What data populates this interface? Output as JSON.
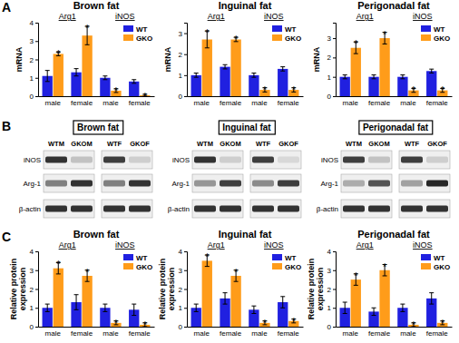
{
  "chart_data": [
    {
      "type": "bar",
      "title": "Brown fat",
      "ylabel": "mRNA",
      "categories": [
        "male",
        "female",
        "male",
        "female"
      ],
      "group_labels": [
        "Arg1",
        "iNOS"
      ],
      "series": [
        {
          "name": "WT",
          "color": "#2020e0",
          "values": [
            1.1,
            1.3,
            1.0,
            0.8
          ],
          "errors": [
            0.3,
            0.2,
            0.1,
            0.1
          ]
        },
        {
          "name": "GKO",
          "color": "#ff9c1a",
          "values": [
            2.3,
            3.3,
            0.3,
            0.05
          ],
          "errors": [
            0.1,
            0.5,
            0.1,
            0.05
          ],
          "annotations": [
            "*",
            "*",
            "*",
            "*"
          ]
        }
      ],
      "ylim": [
        0,
        4
      ],
      "yticks": [
        0,
        1,
        2,
        3,
        4
      ],
      "legend": "upper right"
    },
    {
      "type": "bar",
      "title": "Inguinal fat",
      "ylabel": "mRNA",
      "categories": [
        "male",
        "female",
        "male",
        "female"
      ],
      "group_labels": [
        "Arg1",
        "iNOS"
      ],
      "series": [
        {
          "name": "WT",
          "color": "#2020e0",
          "values": [
            1.0,
            1.4,
            1.0,
            1.3
          ],
          "errors": [
            0.1,
            0.1,
            0.1,
            0.1
          ]
        },
        {
          "name": "GKO",
          "color": "#ff9c1a",
          "values": [
            2.7,
            2.7,
            0.3,
            0.3
          ],
          "errors": [
            0.4,
            0.1,
            0.1,
            0.1
          ],
          "annotations": [
            "*",
            "*",
            "*",
            "*"
          ]
        }
      ],
      "ylim": [
        0,
        3.5
      ],
      "yticks": [
        0,
        1,
        2,
        3
      ],
      "legend": "upper right"
    },
    {
      "type": "bar",
      "title": "Perigonadal fat",
      "ylabel": "mRNA",
      "categories": [
        "male",
        "female",
        "male",
        "female"
      ],
      "group_labels": [
        "Arg1",
        "iNOS"
      ],
      "series": [
        {
          "name": "WT",
          "color": "#2020e0",
          "values": [
            1.0,
            1.0,
            1.0,
            1.3
          ],
          "errors": [
            0.1,
            0.1,
            0.1,
            0.1
          ]
        },
        {
          "name": "GKO",
          "color": "#ff9c1a",
          "values": [
            2.5,
            3.0,
            0.3,
            0.3
          ],
          "errors": [
            0.3,
            0.3,
            0.1,
            0.1
          ],
          "annotations": [
            "*",
            "*",
            "*",
            "*"
          ]
        }
      ],
      "ylim": [
        0,
        3.8
      ],
      "yticks": [
        0,
        1,
        2,
        3
      ],
      "legend": "upper right"
    },
    {
      "type": "bar",
      "title": "Brown fat",
      "ylabel": "Relative protein expression",
      "categories": [
        "male",
        "female",
        "male",
        "female"
      ],
      "group_labels": [
        "Arg1",
        "iNOS"
      ],
      "series": [
        {
          "name": "WT",
          "color": "#2020e0",
          "values": [
            1.0,
            1.3,
            1.0,
            0.9
          ],
          "errors": [
            0.2,
            0.4,
            0.2,
            0.3
          ]
        },
        {
          "name": "GKO",
          "color": "#ff9c1a",
          "values": [
            3.1,
            2.7,
            0.2,
            0.1
          ],
          "errors": [
            0.3,
            0.3,
            0.1,
            0.1
          ],
          "annotations": [
            "*",
            "*",
            "*",
            "*"
          ]
        }
      ],
      "ylim": [
        0,
        4
      ],
      "yticks": [
        0,
        1,
        2,
        3,
        4
      ],
      "legend": "upper right"
    },
    {
      "type": "bar",
      "title": "Inguinal fat",
      "ylabel": "Relative protein expression",
      "categories": [
        "male",
        "female",
        "male",
        "female"
      ],
      "group_labels": [
        "Arg1",
        "iNOS"
      ],
      "series": [
        {
          "name": "WT",
          "color": "#2020e0",
          "values": [
            1.0,
            1.5,
            0.9,
            1.3
          ],
          "errors": [
            0.2,
            0.3,
            0.2,
            0.3
          ]
        },
        {
          "name": "GKO",
          "color": "#ff9c1a",
          "values": [
            3.5,
            2.7,
            0.2,
            0.3
          ],
          "errors": [
            0.3,
            0.3,
            0.1,
            0.1
          ],
          "annotations": [
            "*",
            "*",
            "*",
            "*"
          ]
        }
      ],
      "ylim": [
        0,
        4
      ],
      "yticks": [
        0,
        1,
        2,
        3,
        4
      ],
      "legend": "upper right"
    },
    {
      "type": "bar",
      "title": "Perigonadal fat",
      "ylabel": "Relative protein expression",
      "categories": [
        "male",
        "female",
        "male",
        "female"
      ],
      "group_labels": [
        "Arg1",
        "iNOS"
      ],
      "series": [
        {
          "name": "WT",
          "color": "#2020e0",
          "values": [
            1.0,
            0.8,
            1.0,
            1.5
          ],
          "errors": [
            0.3,
            0.2,
            0.2,
            0.3
          ]
        },
        {
          "name": "GKO",
          "color": "#ff9c1a",
          "values": [
            2.5,
            3.0,
            0.1,
            0.2
          ],
          "errors": [
            0.3,
            0.3,
            0.1,
            0.1
          ],
          "annotations": [
            "*",
            "*",
            "*",
            "*"
          ]
        }
      ],
      "ylim": [
        0,
        4
      ],
      "yticks": [
        0,
        1,
        2,
        3,
        4
      ],
      "legend": "upper right"
    }
  ],
  "figure": {
    "panel_labels": [
      "A",
      "B",
      "C"
    ],
    "blots": [
      {
        "title": "Brown fat",
        "lanes": [
          "WTM",
          "GKOM",
          "WTF",
          "GKOF"
        ],
        "rows": [
          {
            "label": "iNOS",
            "intensity": [
              0.85,
              0.2,
              0.8,
              0.15
            ]
          },
          {
            "label": "Arg-1",
            "intensity": [
              0.5,
              0.85,
              0.5,
              0.85
            ]
          },
          {
            "label": "β-actin",
            "intensity": [
              0.85,
              0.85,
              0.85,
              0.85
            ]
          }
        ]
      },
      {
        "title": "Inguinal fat",
        "lanes": [
          "WTM",
          "GKOM",
          "WTF",
          "GKOF"
        ],
        "rows": [
          {
            "label": "iNOS",
            "intensity": [
              0.85,
              0.15,
              0.8,
              0.1
            ]
          },
          {
            "label": "Arg-1",
            "intensity": [
              0.4,
              0.8,
              0.45,
              0.8
            ]
          },
          {
            "label": "β-actin",
            "intensity": [
              0.85,
              0.85,
              0.85,
              0.85
            ]
          }
        ]
      },
      {
        "title": "Perigonadal fat",
        "lanes": [
          "WTM",
          "GKOM",
          "WTF",
          "GKOF"
        ],
        "rows": [
          {
            "label": "iNOS",
            "intensity": [
              0.8,
              0.2,
              0.8,
              0.15
            ]
          },
          {
            "label": "Arg-1",
            "intensity": [
              0.3,
              0.7,
              0.35,
              0.9
            ]
          },
          {
            "label": "β-actin",
            "intensity": [
              0.85,
              0.85,
              0.85,
              0.85
            ]
          }
        ]
      }
    ]
  }
}
